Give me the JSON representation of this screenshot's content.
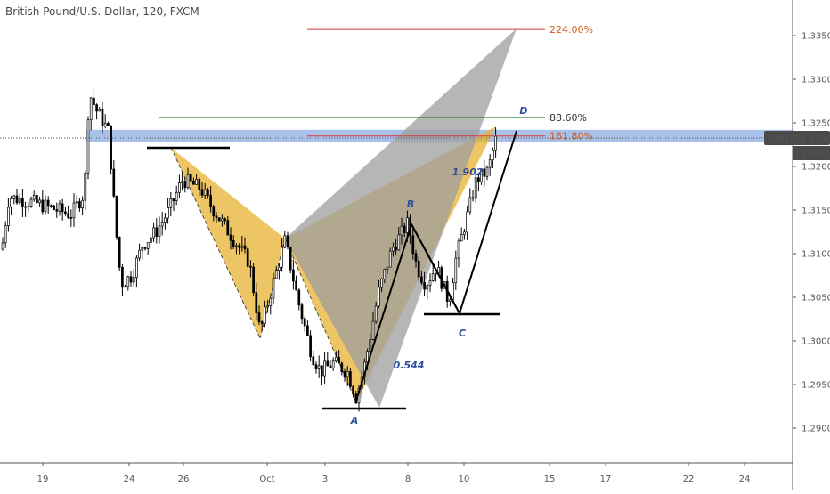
{
  "chart_data": {
    "type": "candlestick",
    "title": "British Pound/U.S. Dollar, 120, FXCM",
    "symbol": "GBPUSD",
    "last_price": "1.32309",
    "countdown": "01:34:29",
    "y_axis": {
      "ylim": [
        1.2855,
        1.359
      ],
      "ticks": [
        "1.33500",
        "1.33000",
        "1.32500",
        "1.32000",
        "1.31500",
        "1.31000",
        "1.30500",
        "1.30000",
        "1.29500",
        "1.29000"
      ]
    },
    "x_axis": {
      "ticks": [
        "19",
        "24",
        "26",
        "Oct",
        "3",
        "8",
        "10",
        "15",
        "17",
        "22",
        "24"
      ]
    },
    "fib_levels": [
      {
        "label": "224.00%",
        "price": 1.3357,
        "color": "#d23b3b"
      },
      {
        "label": "88.60%",
        "price": 1.3256,
        "color": "#2e7d32"
      },
      {
        "label": "161.80%",
        "price": 1.3235,
        "color": "#d23b3b"
      }
    ],
    "pattern_points": [
      {
        "label": "A"
      },
      {
        "label": "B"
      },
      {
        "label": "C"
      },
      {
        "label": "D"
      }
    ],
    "ratios": [
      "0.544",
      "1.902"
    ],
    "colors": {
      "bull": "#ffffff",
      "bear": "#000000",
      "pattern_fill": "#e8b230",
      "pattern_gray": "#9e9e9e",
      "zone": "#6f97d9",
      "label_blue": "#2f4f9e"
    }
  }
}
